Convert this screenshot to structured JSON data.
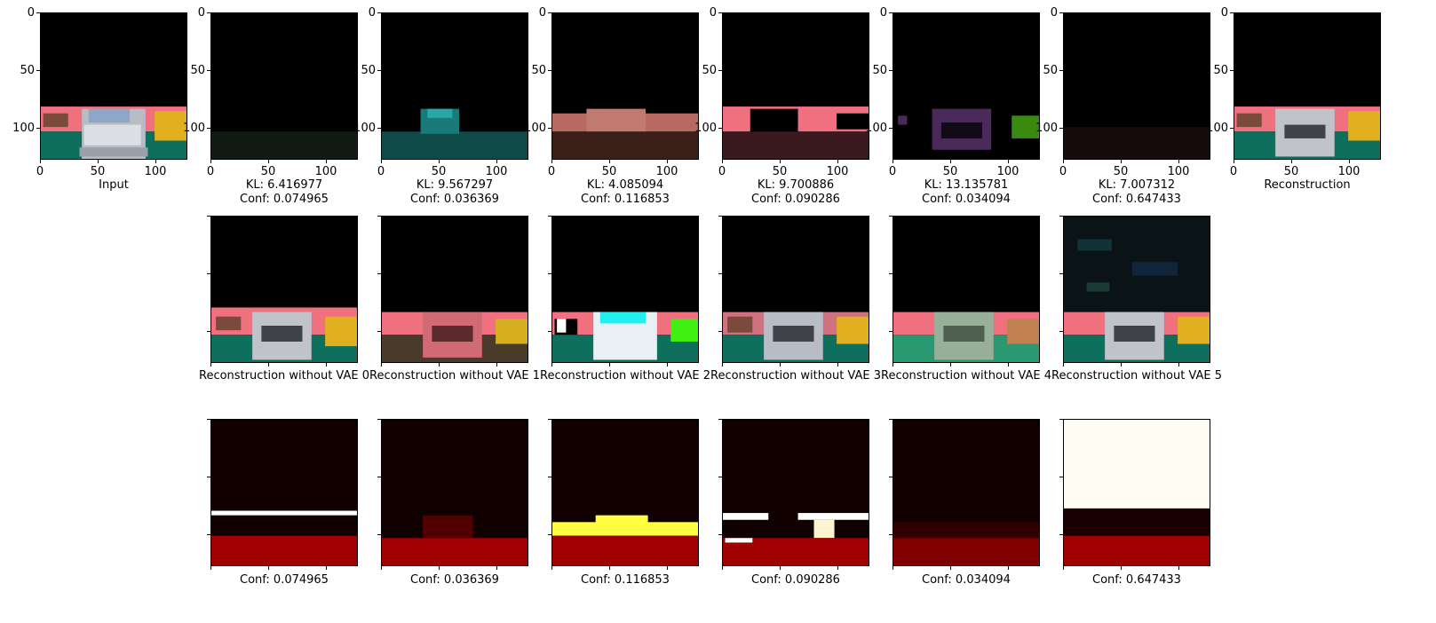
{
  "figure": {
    "axis_ticks": [
      "0",
      "50",
      "100"
    ],
    "row1": {
      "input_label": "Input",
      "reconstruction_label": "Reconstruction",
      "latents": [
        {
          "kl": "KL: 6.416977",
          "conf": "Conf: 0.074965"
        },
        {
          "kl": "KL: 9.567297",
          "conf": "Conf: 0.036369"
        },
        {
          "kl": "KL: 4.085094",
          "conf": "Conf: 0.116853"
        },
        {
          "kl": "KL: 9.700886",
          "conf": "Conf: 0.090286"
        },
        {
          "kl": "KL: 13.135781",
          "conf": "Conf: 0.034094"
        },
        {
          "kl": "KL: 7.007312",
          "conf": "Conf: 0.647433"
        }
      ]
    },
    "row2": {
      "captions": [
        "Reconstruction without VAE 0",
        "Reconstruction without VAE 1",
        "Reconstruction without VAE 2",
        "Reconstruction without VAE 3",
        "Reconstruction without VAE 4",
        "Reconstruction without VAE 5"
      ]
    },
    "row3": {
      "captions": [
        "Conf: 0.074965",
        "Conf: 0.036369",
        "Conf: 0.116853",
        "Conf: 0.090286",
        "Conf: 0.034094",
        "Conf: 0.647433"
      ]
    },
    "colors": {
      "road_pink": "#f0707f",
      "ground_green": "#0e6f5c",
      "car_silver": "#c8ccd2",
      "hot_red": "#a00000",
      "hot_yellow": "#ffff40"
    }
  }
}
